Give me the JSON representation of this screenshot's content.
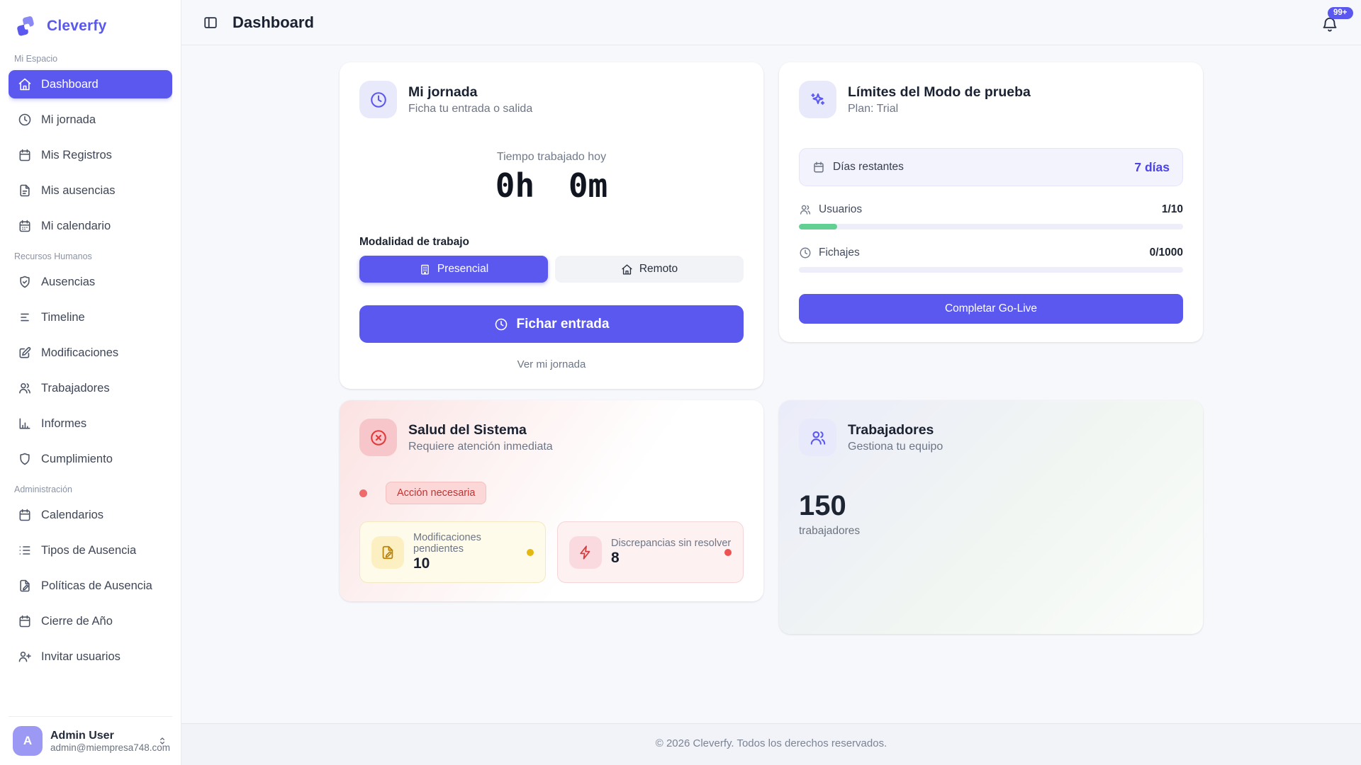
{
  "app": {
    "name": "Cleverfy",
    "footer": "© 2026 Cleverfy. Todos los derechos reservados."
  },
  "header": {
    "title": "Dashboard",
    "toggle_icon": "panel-left",
    "bell_icon": "bell",
    "notifications_badge": "99+"
  },
  "sidebar": {
    "sections": [
      {
        "label": "Mi Espacio",
        "items": [
          {
            "label": "Dashboard",
            "icon": "home",
            "active": true
          },
          {
            "label": "Mi jornada",
            "icon": "clock"
          },
          {
            "label": "Mis Registros",
            "icon": "calendar"
          },
          {
            "label": "Mis ausencias",
            "icon": "file-text"
          },
          {
            "label": "Mi calendario",
            "icon": "calendar-days"
          }
        ]
      },
      {
        "label": "Recursos Humanos",
        "items": [
          {
            "label": "Ausencias",
            "icon": "shield-check"
          },
          {
            "label": "Timeline",
            "icon": "timeline"
          },
          {
            "label": "Modificaciones",
            "icon": "edit"
          },
          {
            "label": "Trabajadores",
            "icon": "users"
          },
          {
            "label": "Informes",
            "icon": "bar-chart"
          },
          {
            "label": "Cumplimiento",
            "icon": "shield"
          }
        ]
      },
      {
        "label": "Administración",
        "items": [
          {
            "label": "Calendarios",
            "icon": "calendar"
          },
          {
            "label": "Tipos de Ausencia",
            "icon": "list"
          },
          {
            "label": "Políticas de Ausencia",
            "icon": "file-pen"
          },
          {
            "label": "Cierre de Año",
            "icon": "calendar"
          },
          {
            "label": "Invitar usuarios",
            "icon": "user-plus"
          }
        ]
      }
    ],
    "user": {
      "initial": "A",
      "name": "Admin User",
      "email": "admin@miempresa748.com",
      "menu_icon": "chevrons-up-down"
    }
  },
  "cards": {
    "jornada": {
      "icon": "clock",
      "title": "Mi jornada",
      "subtitle": "Ficha tu entrada o salida",
      "time_label": "Tiempo trabajado hoy",
      "time_value": "0h 0m",
      "modality_label": "Modalidad de trabajo",
      "modes": [
        {
          "label": "Presencial",
          "icon": "building",
          "selected": true
        },
        {
          "label": "Remoto",
          "icon": "home",
          "selected": false
        }
      ],
      "primary_action": "Fichar entrada",
      "primary_icon": "clock",
      "link": "Ver mi jornada"
    },
    "limits": {
      "icon": "sparkles",
      "title": "Límites del Modo de prueba",
      "subtitle": "Plan: Trial",
      "days_icon": "calendar",
      "days_label": "Días restantes",
      "days_value": "7 días",
      "meters": [
        {
          "label": "Usuarios",
          "icon": "users",
          "value": "1/10",
          "percent": 10
        },
        {
          "label": "Fichajes",
          "icon": "clock",
          "value": "0/1000",
          "percent": 0
        }
      ],
      "action": "Completar Go-Live"
    },
    "health": {
      "icon": "x-circle",
      "title": "Salud del Sistema",
      "subtitle": "Requiere atención inmediata",
      "badge": "Acción necesaria",
      "stats": [
        {
          "label": "Modificaciones pendientes",
          "value": "10",
          "icon": "file-pen",
          "tone": "warning"
        },
        {
          "label": "Discrepancias sin resolver",
          "value": "8",
          "icon": "zap",
          "tone": "danger"
        }
      ]
    },
    "workers": {
      "icon": "users",
      "title": "Trabajadores",
      "subtitle": "Gestiona tu equipo",
      "count": "150",
      "count_label": "trabajadores"
    }
  },
  "colors": {
    "accent": "#5a58ef",
    "success": "#63d093",
    "danger": "#ee5353",
    "warning": "#e5b711"
  }
}
